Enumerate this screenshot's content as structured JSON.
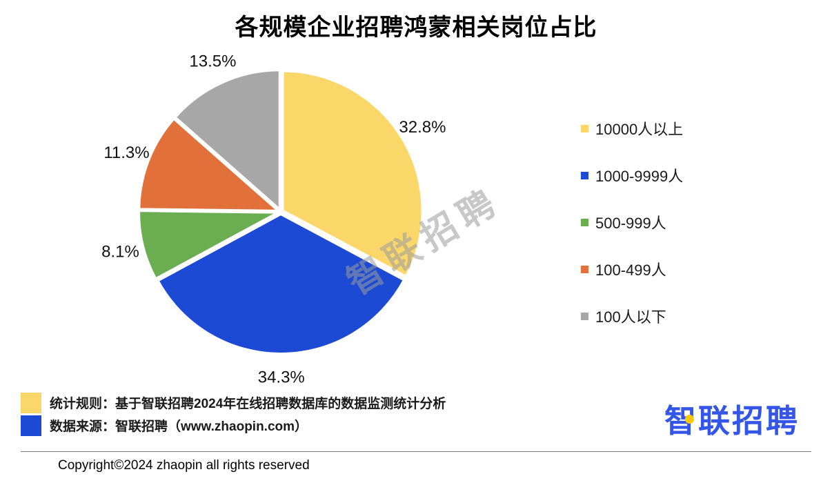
{
  "title": "各规模企业招聘鸿蒙相关岗位占比",
  "watermark": "智联招聘",
  "chart_data": {
    "type": "pie",
    "title": "各规模企业招聘鸿蒙相关岗位占比",
    "unit": "%",
    "direction": "clockwise",
    "start_angle_deg": 0,
    "legend_position": "right",
    "slices": [
      {
        "label": "10000人以上",
        "value": 32.8,
        "color": "#FBD76A"
      },
      {
        "label": "1000-9999人",
        "value": 34.3,
        "color": "#1C4AD4"
      },
      {
        "label": "500-999人",
        "value": 8.1,
        "color": "#6BAD51"
      },
      {
        "label": "100-499人",
        "value": 11.3,
        "color": "#E1703A"
      },
      {
        "label": "100人以下",
        "value": 13.5,
        "color": "#A7A7A7"
      }
    ]
  },
  "notes": [
    {
      "color": "#FBD76A",
      "text": "统计规则：基于智联招聘2024年在线招聘数据库的数据监测统计分析"
    },
    {
      "color": "#1C4AD4",
      "text": "数据来源：智联招聘（www.zhaopin.com）"
    }
  ],
  "logo": {
    "text": "智联招聘",
    "color": "#3355E8",
    "dot_color": "#FFC800"
  },
  "copyright": "Copyright©2024 zhaopin all rights reserved"
}
